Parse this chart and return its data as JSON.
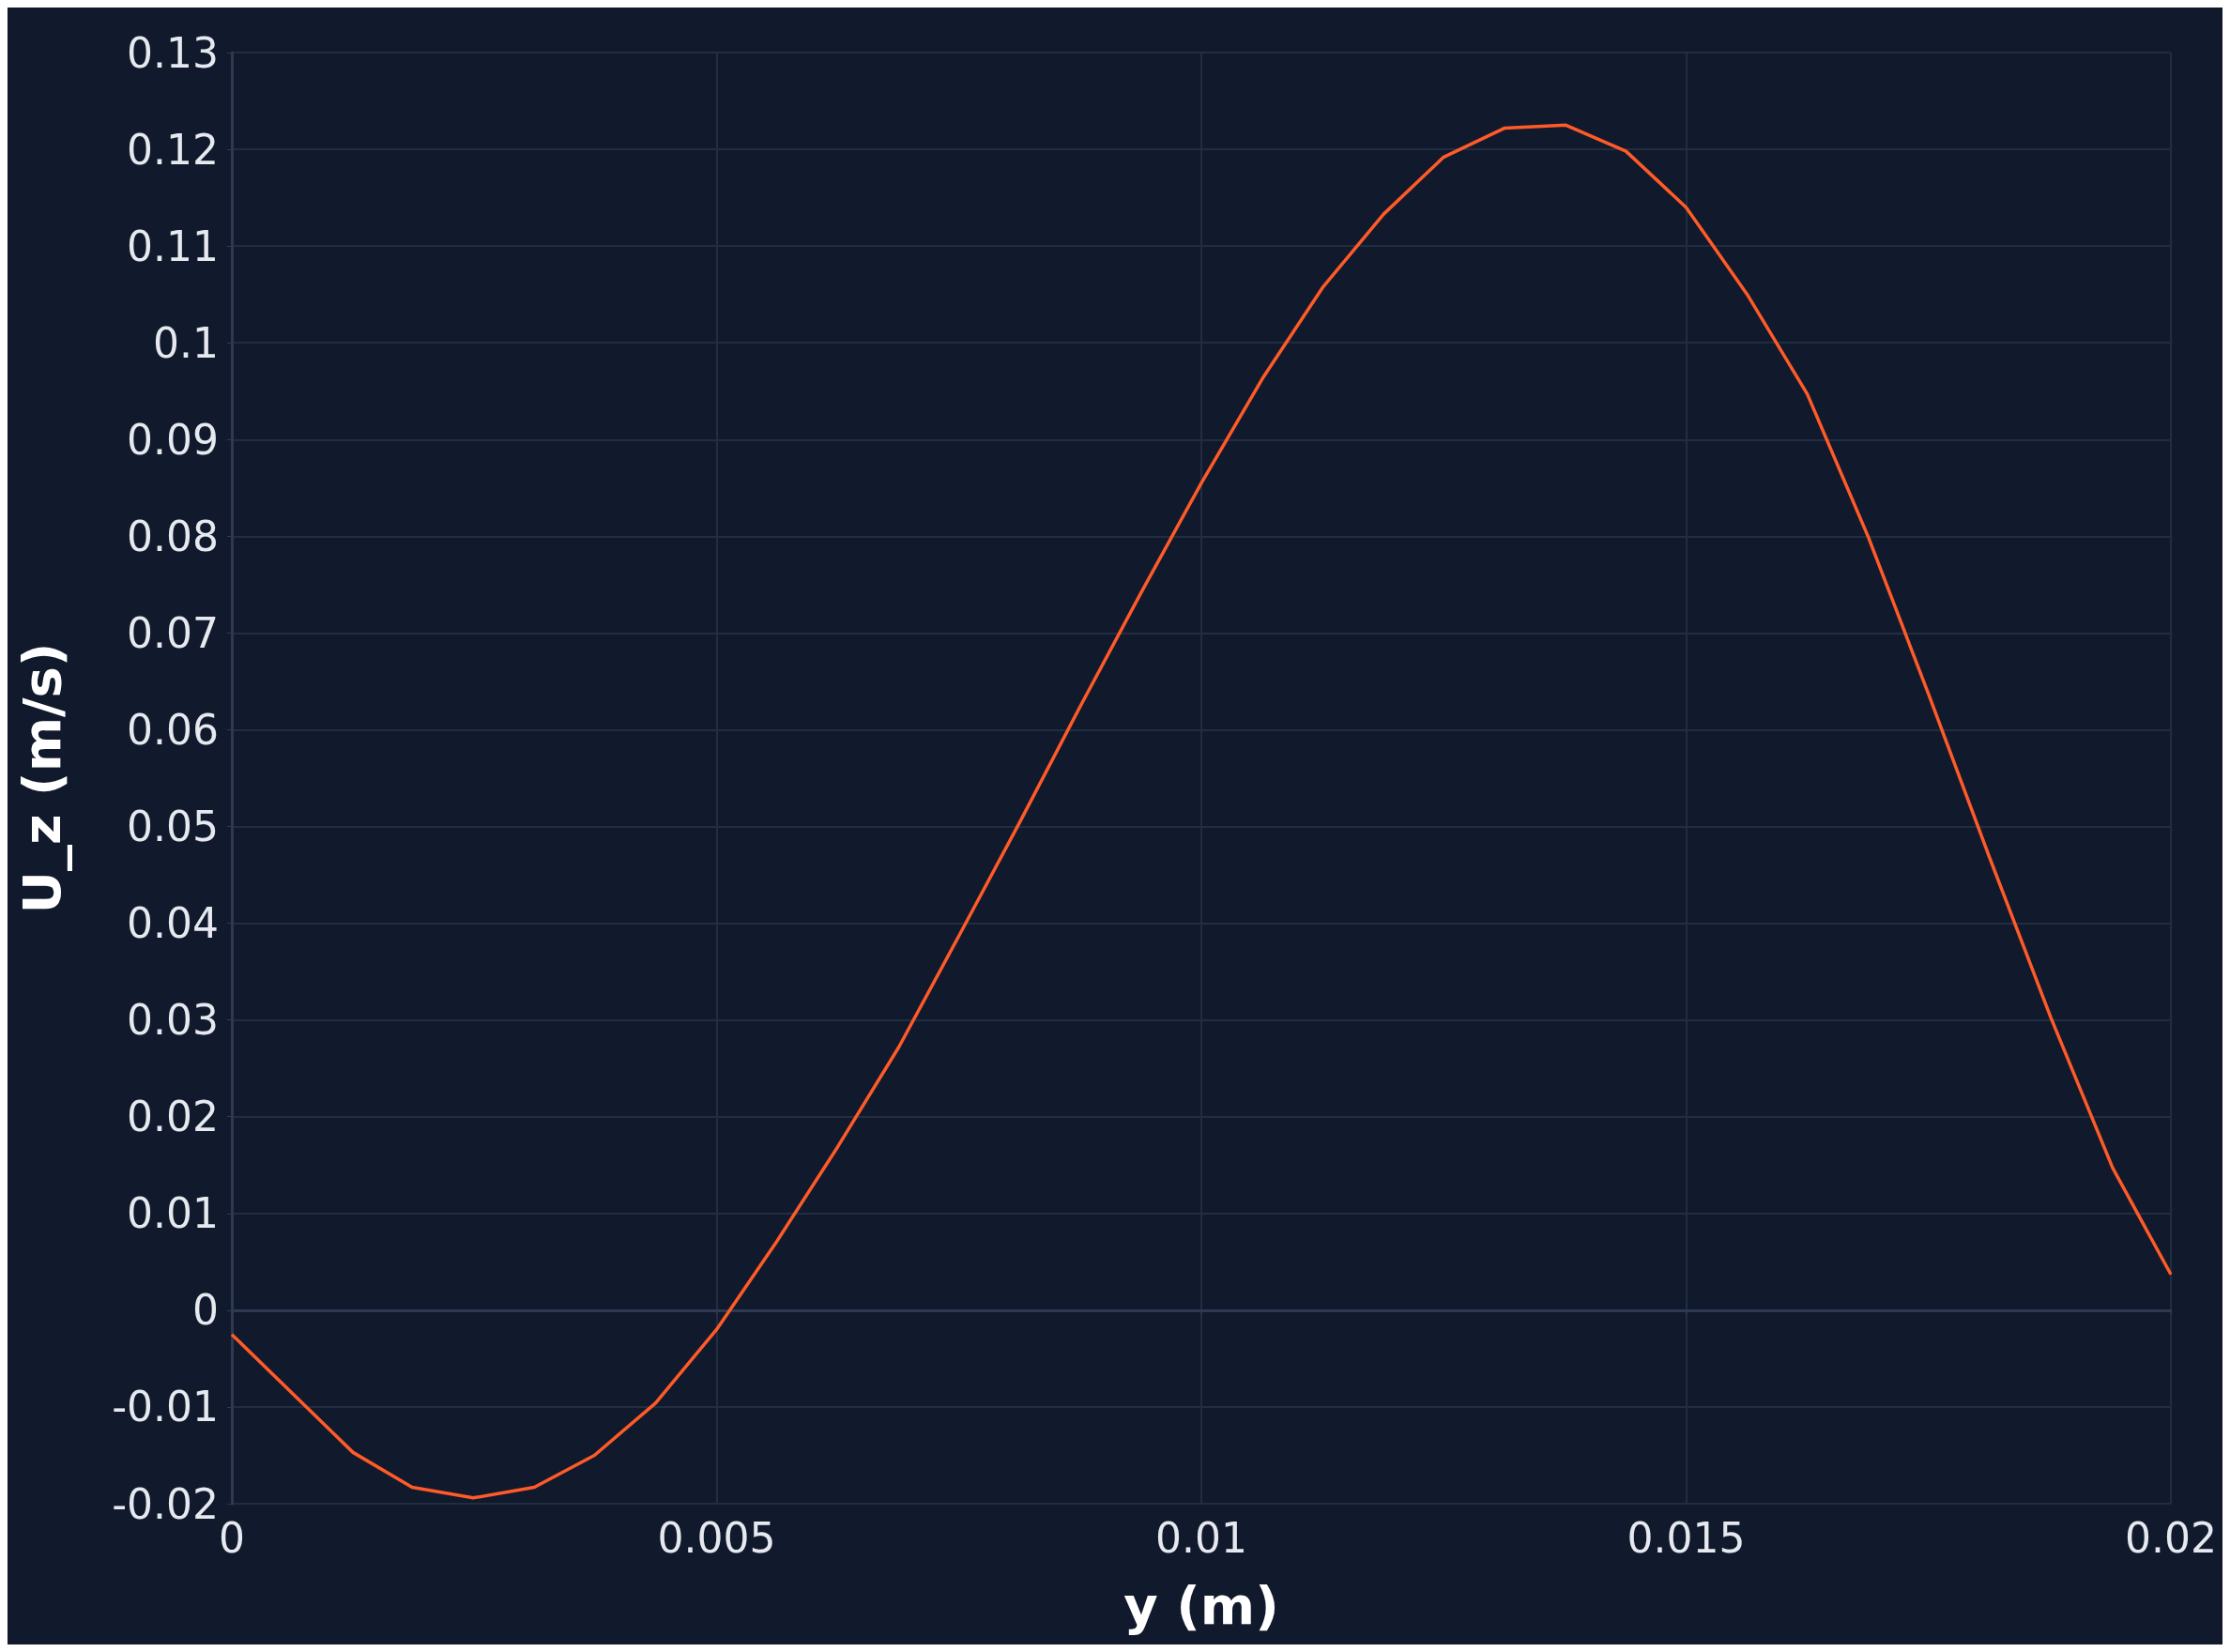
{
  "chart_data": {
    "type": "line",
    "xlabel": "y (m)",
    "ylabel": "U_z (m/s)",
    "x": [
      0,
      0.00125,
      0.00186,
      0.00249,
      0.00312,
      0.00374,
      0.00437,
      0.005,
      0.00562,
      0.00625,
      0.00688,
      0.0075,
      0.00813,
      0.00875,
      0.00938,
      0.01,
      0.01063,
      0.01125,
      0.01188,
      0.0125,
      0.01313,
      0.01376,
      0.01438,
      0.015,
      0.01563,
      0.01625,
      0.01688,
      0.0175,
      0.01813,
      0.01876,
      0.0194,
      0.02
    ],
    "series": [
      {
        "color": "#ff5a28",
        "values": [
          -0.0025,
          -0.0147,
          -0.0183,
          -0.0194,
          -0.0183,
          -0.015,
          -0.0096,
          -0.002,
          0.0071,
          0.0169,
          0.0272,
          0.0387,
          0.0505,
          0.0624,
          0.0742,
          0.0855,
          0.0963,
          0.1057,
          0.1133,
          0.1192,
          0.1222,
          0.1225,
          0.1198,
          0.114,
          0.105,
          0.0947,
          0.0799,
          0.0637,
          0.0468,
          0.0303,
          0.0147,
          0.0037
        ]
      }
    ],
    "xlim": [
      0,
      0.02
    ],
    "xticks": [
      0,
      0.005,
      0.01,
      0.015,
      0.02
    ],
    "ylim": [
      -0.02,
      0.13
    ],
    "yticks": [
      -0.02,
      -0.01,
      0,
      0.01,
      0.02,
      0.03,
      0.04,
      0.05,
      0.06,
      0.07,
      0.08,
      0.09,
      0.1,
      0.11,
      0.12,
      0.13
    ],
    "grid": true,
    "marker": "none",
    "line_style": "solid"
  }
}
